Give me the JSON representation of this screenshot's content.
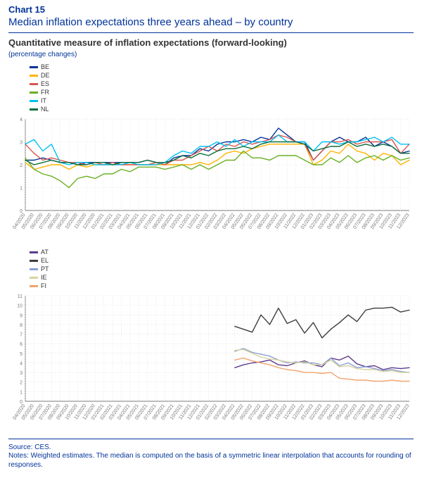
{
  "header": {
    "chart_no": "Chart 15",
    "title": "Median inflation expectations three years ahead – by country",
    "subtitle": "Quantitative measure of inflation expectations (forward-looking)",
    "unit": "(percentage changes)"
  },
  "footer": {
    "source": "Source: CES.",
    "notes": "Notes: Weighted estimates. The median is computed on the basis of a symmetric linear interpolation that accounts for rounding of responses."
  },
  "colors": {
    "title": "#003399",
    "text": "#333333",
    "grid": "#bfbfbf",
    "grid_light": "#dedede",
    "axis": "#7a7a7a",
    "background": "#ffffff"
  },
  "axis_font_size": 7,
  "tick_font_size": 7,
  "legend_font_size": 9,
  "x_labels": [
    "04/2020",
    "05/2020",
    "06/2020",
    "07/2020",
    "08/2020",
    "09/2020",
    "10/2020",
    "11/2020",
    "12/2020",
    "01/2021",
    "02/2021",
    "03/2021",
    "04/2021",
    "05/2021",
    "06/2021",
    "07/2021",
    "08/2021",
    "09/2021",
    "10/2021",
    "11/2021",
    "12/2021",
    "01/2022",
    "02/2022",
    "03/2022",
    "04/2022",
    "05/2022",
    "06/2022",
    "07/2022",
    "08/2022",
    "09/2022",
    "10/2022",
    "11/2022",
    "12/2022",
    "01/2023",
    "02/2023",
    "03/2023",
    "04/2023",
    "05/2023",
    "06/2023",
    "07/2023",
    "08/2023",
    "09/2023",
    "10/2023",
    "11/2023",
    "12/2023"
  ],
  "chart1": {
    "type": "line",
    "ylim": [
      0,
      4
    ],
    "ytick_step": 1,
    "line_width": 1.4,
    "series": [
      {
        "code": "BE",
        "color": "#003399",
        "values": [
          2.2,
          2.2,
          2.3,
          2.2,
          2.1,
          2.1,
          2.0,
          2.1,
          2.1,
          2.1,
          2.1,
          2.1,
          2.1,
          2.1,
          2.2,
          2.1,
          2.0,
          2.3,
          2.4,
          2.4,
          2.7,
          2.6,
          2.9,
          3.0,
          3.0,
          3.1,
          3.0,
          3.2,
          3.1,
          3.6,
          3.3,
          3.0,
          3.0,
          2.2,
          2.6,
          3.0,
          3.2,
          3.0,
          3.0,
          3.2,
          2.8,
          3.0,
          2.8,
          2.5,
          2.6
        ]
      },
      {
        "code": "DE",
        "color": "#ffb300",
        "values": [
          2.1,
          1.8,
          1.9,
          2.0,
          2.0,
          1.8,
          2.0,
          1.9,
          2.0,
          2.0,
          2.0,
          2.0,
          2.0,
          2.0,
          2.0,
          2.0,
          2.0,
          2.0,
          2.0,
          2.0,
          2.1,
          2.0,
          2.2,
          2.5,
          2.6,
          2.5,
          2.7,
          2.8,
          2.9,
          2.9,
          2.9,
          2.9,
          2.9,
          2.0,
          2.2,
          2.6,
          2.5,
          2.9,
          2.6,
          2.5,
          2.2,
          2.5,
          2.4,
          2.0,
          2.2
        ]
      },
      {
        "code": "ES",
        "color": "#d9534f",
        "values": [
          2.9,
          2.5,
          2.2,
          2.3,
          2.2,
          2.1,
          2.1,
          2.0,
          2.1,
          2.0,
          2.1,
          2.0,
          2.0,
          2.0,
          2.0,
          2.1,
          2.0,
          2.2,
          2.2,
          2.4,
          2.6,
          2.8,
          2.6,
          2.9,
          2.8,
          3.0,
          2.9,
          3.0,
          3.1,
          3.3,
          3.2,
          3.0,
          2.9,
          2.2,
          2.6,
          3.0,
          3.0,
          3.1,
          2.9,
          3.0,
          3.0,
          3.0,
          3.1,
          2.5,
          2.9
        ]
      },
      {
        "code": "FR",
        "color": "#6ab023",
        "values": [
          2.3,
          1.8,
          1.6,
          1.5,
          1.3,
          1.0,
          1.4,
          1.5,
          1.4,
          1.6,
          1.6,
          1.8,
          1.7,
          1.9,
          1.9,
          1.9,
          1.8,
          1.9,
          2.0,
          1.8,
          2.0,
          1.8,
          2.0,
          2.2,
          2.2,
          2.6,
          2.3,
          2.3,
          2.2,
          2.4,
          2.4,
          2.4,
          2.2,
          2.0,
          2.0,
          2.3,
          2.1,
          2.4,
          2.1,
          2.3,
          2.4,
          2.2,
          2.4,
          2.2,
          2.3
        ]
      },
      {
        "code": "IT",
        "color": "#00c0f3",
        "values": [
          2.9,
          3.1,
          2.6,
          2.9,
          2.1,
          2.0,
          2.1,
          2.1,
          2.0,
          2.0,
          2.0,
          2.0,
          2.1,
          2.0,
          2.0,
          2.0,
          2.1,
          2.4,
          2.6,
          2.5,
          2.8,
          2.8,
          3.0,
          2.8,
          3.1,
          2.8,
          3.0,
          3.0,
          3.0,
          3.3,
          3.0,
          3.0,
          3.0,
          2.6,
          3.0,
          3.0,
          2.9,
          3.0,
          3.0,
          3.1,
          3.2,
          3.0,
          3.2,
          2.9,
          2.9
        ]
      },
      {
        "code": "NL",
        "color": "#0b6e3b",
        "values": [
          2.2,
          2.0,
          2.1,
          2.2,
          2.1,
          2.1,
          2.0,
          2.0,
          2.1,
          2.1,
          2.0,
          2.1,
          2.1,
          2.1,
          2.2,
          2.1,
          2.1,
          2.2,
          2.4,
          2.3,
          2.5,
          2.4,
          2.6,
          2.7,
          2.7,
          2.8,
          2.7,
          2.9,
          3.0,
          3.0,
          3.0,
          3.0,
          2.9,
          2.6,
          2.7,
          2.8,
          2.8,
          3.0,
          2.8,
          2.9,
          2.8,
          2.9,
          2.8,
          2.5,
          2.5
        ]
      }
    ]
  },
  "chart2": {
    "type": "line",
    "ylim": [
      0,
      11
    ],
    "ytick_step": 1,
    "line_width": 1.4,
    "start_index": 24,
    "series": [
      {
        "code": "AT",
        "color": "#5d3b8e",
        "values": [
          3.5,
          3.8,
          4.0,
          4.1,
          4.3,
          3.8,
          3.7,
          4.0,
          4.2,
          3.8,
          3.6,
          4.5,
          4.3,
          4.7,
          3.9,
          3.6,
          3.7,
          3.3,
          3.5,
          3.4,
          3.5
        ]
      },
      {
        "code": "EL",
        "color": "#3c3c3c",
        "values": [
          7.8,
          7.5,
          7.2,
          9.0,
          8.0,
          9.7,
          8.1,
          8.5,
          7.1,
          8.2,
          6.6,
          7.5,
          8.2,
          9.0,
          8.3,
          9.5,
          9.7,
          9.7,
          9.8,
          9.3,
          9.5
        ]
      },
      {
        "code": "PT",
        "color": "#8aa0d6",
        "values": [
          5.2,
          5.5,
          5.1,
          4.9,
          4.7,
          4.3,
          4.0,
          4.1,
          4.0,
          4.0,
          3.8,
          4.5,
          3.7,
          4.0,
          3.5,
          3.6,
          3.4,
          3.2,
          3.3,
          3.1,
          3.0
        ]
      },
      {
        "code": "IE",
        "color": "#d8d49b",
        "values": [
          5.3,
          5.4,
          5.0,
          4.6,
          4.4,
          4.3,
          4.1,
          4.0,
          4.1,
          3.8,
          3.8,
          4.3,
          3.6,
          3.7,
          3.4,
          3.3,
          3.3,
          3.1,
          3.2,
          3.0,
          3.0
        ]
      },
      {
        "code": "FI",
        "color": "#f4a36c",
        "values": [
          4.3,
          4.5,
          4.2,
          4.0,
          3.8,
          3.5,
          3.3,
          3.2,
          3.0,
          3.0,
          2.9,
          3.0,
          2.4,
          2.3,
          2.2,
          2.2,
          2.1,
          2.1,
          2.2,
          2.1,
          2.1
        ]
      }
    ]
  }
}
